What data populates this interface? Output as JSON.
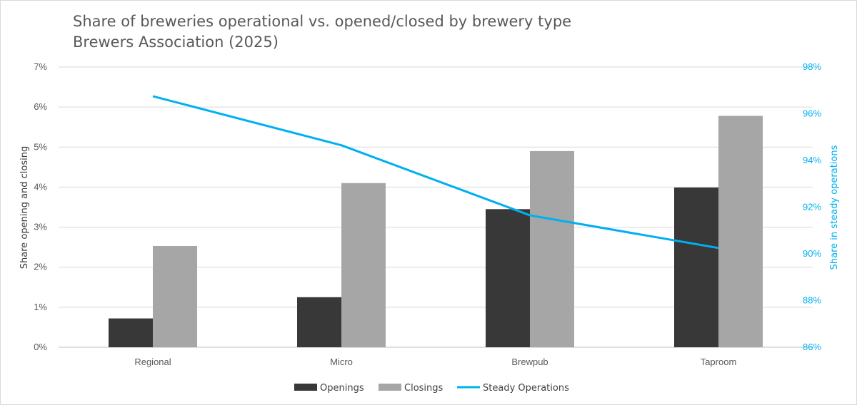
{
  "chart_data": {
    "type": "bar",
    "title": "Share of breweries operational vs. opened/closed by brewery type",
    "subtitle": "Brewers Association (2025)",
    "categories": [
      "Regional",
      "Micro",
      "Brewpub",
      "Taproom"
    ],
    "series": [
      {
        "name": "Openings",
        "type": "bar",
        "axis": "left",
        "color": "#383838",
        "values": [
          0.72,
          1.25,
          3.45,
          3.99
        ]
      },
      {
        "name": "Closings",
        "type": "bar",
        "axis": "left",
        "color": "#a6a6a6",
        "values": [
          2.53,
          4.1,
          4.9,
          5.78
        ]
      },
      {
        "name": "Steady Operations",
        "type": "line",
        "axis": "right",
        "color": "#00b0f0",
        "values": [
          96.75,
          94.65,
          91.65,
          90.25
        ]
      }
    ],
    "ylabel": "Share opening and closing",
    "ylabel_right": "Share in steady operations",
    "ylim": [
      0,
      7
    ],
    "ylim_right": [
      86,
      98
    ],
    "yticks": [
      "0%",
      "1%",
      "2%",
      "3%",
      "4%",
      "5%",
      "6%",
      "7%"
    ],
    "yticks_right": [
      "86%",
      "88%",
      "90%",
      "92%",
      "94%",
      "96%",
      "98%"
    ],
    "grid": true,
    "legend_position": "bottom"
  }
}
